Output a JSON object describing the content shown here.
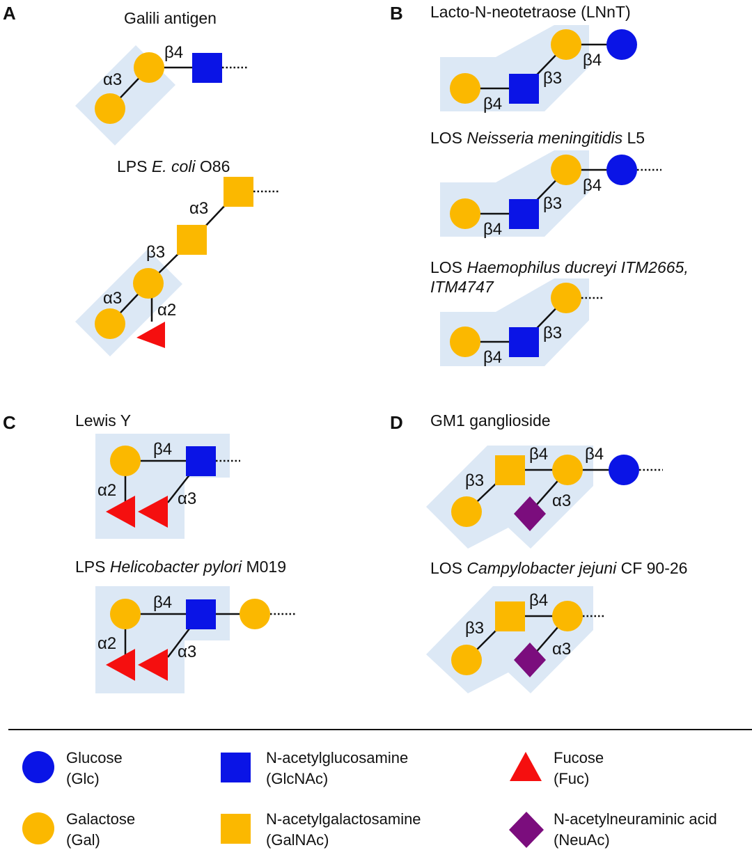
{
  "colors": {
    "glc": "#0a14e6",
    "gal": "#fbb800",
    "galnac": "#fbb800",
    "glcnac": "#0a14e6",
    "fuc": "#f50f0f",
    "neuac": "#7b0d7d",
    "shade": "#dce8f5"
  },
  "panels": {
    "A": {
      "letter": "A",
      "galili": {
        "title": "Galili antigen",
        "b4": "β4",
        "a3": "α3"
      },
      "ecoli": {
        "title_pre": "LPS ",
        "title_ital": "E. coli",
        "title_post": " O86",
        "a3_top": "α3",
        "b3": "β3",
        "a3": "α3",
        "a2": "α2"
      }
    },
    "B": {
      "letter": "B",
      "lnnt": {
        "title": "Lacto-N-neotetraose (LNnT)",
        "b4_left": "β4",
        "b3": "β3",
        "b4_right": "β4"
      },
      "neisseria": {
        "title_pre": "LOS ",
        "title_ital": "Neisseria meningitidis",
        "title_post": " L5",
        "b4_left": "β4",
        "b3": "β3",
        "b4_right": "β4"
      },
      "haemophilus": {
        "title_pre": "LOS ",
        "title_ital_1": "Haemophilus ducreyi ITM2665,",
        "title_ital_2": "ITM4747",
        "b4_left": "β4",
        "b3": "β3"
      }
    },
    "C": {
      "letter": "C",
      "lewis": {
        "title": "Lewis Y",
        "b4": "β4",
        "a2": "α2",
        "a3": "α3"
      },
      "pylori": {
        "title_pre": "LPS ",
        "title_ital": "Helicobacter pylori",
        "title_post": " M019",
        "b4": "β4",
        "a2": "α2",
        "a3": "α3"
      }
    },
    "D": {
      "letter": "D",
      "gm1": {
        "title": "GM1 ganglioside",
        "b3": "β3",
        "b4_left": "β4",
        "b4_right": "β4",
        "a3": "α3"
      },
      "jejuni": {
        "title_pre": "LOS ",
        "title_ital": "Campylobacter jejuni",
        "title_post": " CF 90-26",
        "b3": "β3",
        "b4": "β4",
        "a3": "α3"
      }
    }
  },
  "legend": {
    "glc": {
      "name": "Glucose",
      "abbr": "(Glc)",
      "icon": "blue-circle"
    },
    "gal": {
      "name": "Galactose",
      "abbr": "(Gal)",
      "icon": "yellow-circle"
    },
    "glcnac": {
      "name": "N-acetylglucosamine",
      "abbr": "(GlcNAc)",
      "icon": "blue-square"
    },
    "galnac": {
      "name": "N-acetylgalactosamine",
      "abbr": "(GalNAc)",
      "icon": "yellow-square"
    },
    "fuc": {
      "name": "Fucose",
      "abbr": "(Fuc)",
      "icon": "red-triangle"
    },
    "neuac": {
      "name": "N-acetylneuraminic acid",
      "abbr": "(NeuAc)",
      "icon": "purple-diamond"
    }
  }
}
